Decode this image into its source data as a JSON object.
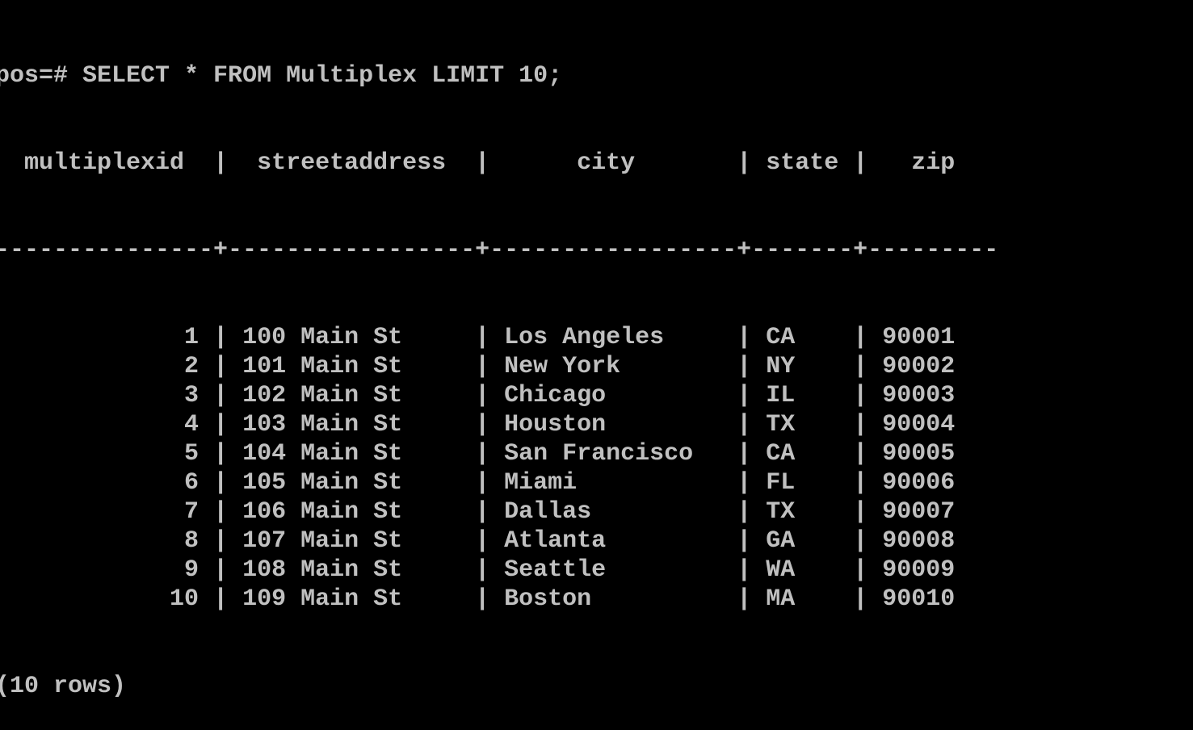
{
  "terminal": {
    "prompt": "pos=#",
    "command": "SELECT * FROM Multiplex LIMIT 10;",
    "colors": {
      "background": "#000000",
      "text": "#c0c0c0"
    }
  },
  "table": {
    "columns": [
      {
        "key": "multiplexid",
        "label": "multiplexid",
        "width": 13,
        "align": "right"
      },
      {
        "key": "streetaddress",
        "label": "streetaddress",
        "width": 15,
        "align": "left"
      },
      {
        "key": "city",
        "label": "city",
        "width": 15,
        "align": "left"
      },
      {
        "key": "state",
        "label": "state",
        "width": 5,
        "align": "left"
      },
      {
        "key": "zip",
        "label": "zip",
        "width": 7,
        "align": "left"
      }
    ],
    "rows": [
      {
        "multiplexid": "1",
        "streetaddress": "100 Main St",
        "city": "Los Angeles",
        "state": "CA",
        "zip": "90001"
      },
      {
        "multiplexid": "2",
        "streetaddress": "101 Main St",
        "city": "New York",
        "state": "NY",
        "zip": "90002"
      },
      {
        "multiplexid": "3",
        "streetaddress": "102 Main St",
        "city": "Chicago",
        "state": "IL",
        "zip": "90003"
      },
      {
        "multiplexid": "4",
        "streetaddress": "103 Main St",
        "city": "Houston",
        "state": "TX",
        "zip": "90004"
      },
      {
        "multiplexid": "5",
        "streetaddress": "104 Main St",
        "city": "San Francisco",
        "state": "CA",
        "zip": "90005"
      },
      {
        "multiplexid": "6",
        "streetaddress": "105 Main St",
        "city": "Miami",
        "state": "FL",
        "zip": "90006"
      },
      {
        "multiplexid": "7",
        "streetaddress": "106 Main St",
        "city": "Dallas",
        "state": "TX",
        "zip": "90007"
      },
      {
        "multiplexid": "8",
        "streetaddress": "107 Main St",
        "city": "Atlanta",
        "state": "GA",
        "zip": "90008"
      },
      {
        "multiplexid": "9",
        "streetaddress": "108 Main St",
        "city": "Seattle",
        "state": "WA",
        "zip": "90009"
      },
      {
        "multiplexid": "10",
        "streetaddress": "109 Main St",
        "city": "Boston",
        "state": "MA",
        "zip": "90010"
      }
    ],
    "footer": "(10 rows)"
  }
}
